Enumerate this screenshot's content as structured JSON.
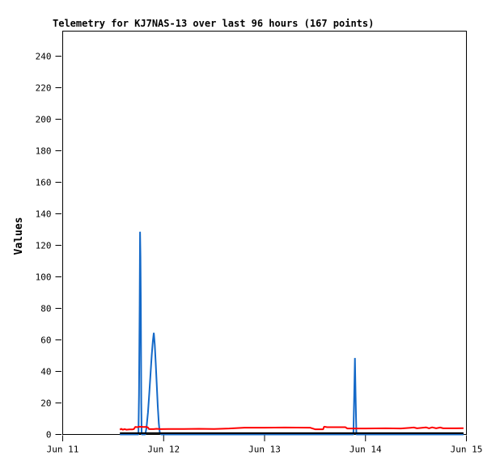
{
  "page": {
    "background": "#ffffff"
  },
  "chart_data": {
    "type": "line",
    "title": "Telemetry for KJ7NAS-13 over last 96 hours (167 points)",
    "title_color": "#000080",
    "xlabel": "",
    "ylabel": "Values",
    "axis_color": "#000000",
    "grid": false,
    "legend": "none",
    "ylim": [
      0,
      256
    ],
    "y_ticks": [
      0,
      20,
      40,
      60,
      80,
      100,
      120,
      140,
      160,
      180,
      200,
      220,
      240
    ],
    "x_unit": "days since Jun 11 00:00",
    "xlim_days": [
      0,
      4
    ],
    "x_ticks": [
      {
        "day": 0,
        "label": "Jun 11"
      },
      {
        "day": 1,
        "label": "Jun 12"
      },
      {
        "day": 2,
        "label": "Jun 13"
      },
      {
        "day": 3,
        "label": "Jun 14"
      },
      {
        "day": 4,
        "label": "Jun 15"
      }
    ],
    "series": [
      {
        "name": "channel-blue",
        "color": "#1469C8",
        "points": [
          [
            0.567,
            0
          ],
          [
            0.75,
            0
          ],
          [
            0.756,
            25
          ],
          [
            0.762,
            81
          ],
          [
            0.766,
            128.6
          ],
          [
            0.77,
            113
          ],
          [
            0.774,
            81
          ],
          [
            0.778,
            20
          ],
          [
            0.782,
            0
          ],
          [
            0.818,
            0
          ],
          [
            0.83,
            4
          ],
          [
            0.845,
            14
          ],
          [
            0.858,
            26
          ],
          [
            0.87,
            38
          ],
          [
            0.882,
            50
          ],
          [
            0.893,
            59
          ],
          [
            0.903,
            64.5
          ],
          [
            0.912,
            57
          ],
          [
            0.922,
            45
          ],
          [
            0.932,
            31
          ],
          [
            0.942,
            18
          ],
          [
            0.952,
            7
          ],
          [
            0.962,
            1
          ],
          [
            0.975,
            0
          ],
          [
            2.88,
            0
          ],
          [
            2.888,
            25
          ],
          [
            2.895,
            48.5
          ],
          [
            2.902,
            25
          ],
          [
            2.91,
            0
          ],
          [
            3.971,
            0
          ]
        ]
      },
      {
        "name": "channel-red",
        "color": "#FF0000",
        "points": [
          [
            0.567,
            3.0
          ],
          [
            0.58,
            3.6
          ],
          [
            0.595,
            3.0
          ],
          [
            0.615,
            3.4
          ],
          [
            0.63,
            3.0
          ],
          [
            0.66,
            3.2
          ],
          [
            0.69,
            3.2
          ],
          [
            0.705,
            3.4
          ],
          [
            0.72,
            4.8
          ],
          [
            0.74,
            4.6
          ],
          [
            0.76,
            4.9
          ],
          [
            0.8,
            4.7
          ],
          [
            0.83,
            4.8
          ],
          [
            0.845,
            4.4
          ],
          [
            0.855,
            3.4
          ],
          [
            0.9,
            3.4
          ],
          [
            0.93,
            3.6
          ],
          [
            0.97,
            3.4
          ],
          [
            1.05,
            3.5
          ],
          [
            1.2,
            3.5
          ],
          [
            1.35,
            3.6
          ],
          [
            1.5,
            3.5
          ],
          [
            1.65,
            3.8
          ],
          [
            1.8,
            4.3
          ],
          [
            2.0,
            4.3
          ],
          [
            2.2,
            4.4
          ],
          [
            2.45,
            4.3
          ],
          [
            2.5,
            3.3
          ],
          [
            2.58,
            3.3
          ],
          [
            2.59,
            5.0
          ],
          [
            2.62,
            4.6
          ],
          [
            2.8,
            4.6
          ],
          [
            2.82,
            3.8
          ],
          [
            3.0,
            3.8
          ],
          [
            3.2,
            3.9
          ],
          [
            3.35,
            3.8
          ],
          [
            3.48,
            4.4
          ],
          [
            3.51,
            3.9
          ],
          [
            3.6,
            4.5
          ],
          [
            3.63,
            3.9
          ],
          [
            3.66,
            4.5
          ],
          [
            3.7,
            3.9
          ],
          [
            3.74,
            4.4
          ],
          [
            3.77,
            3.9
          ],
          [
            3.9,
            3.9
          ],
          [
            3.971,
            4.0
          ]
        ]
      },
      {
        "name": "channel-black",
        "color": "#000000",
        "points": [
          [
            0.567,
            0.8
          ],
          [
            3.971,
            0.8
          ]
        ]
      }
    ]
  }
}
